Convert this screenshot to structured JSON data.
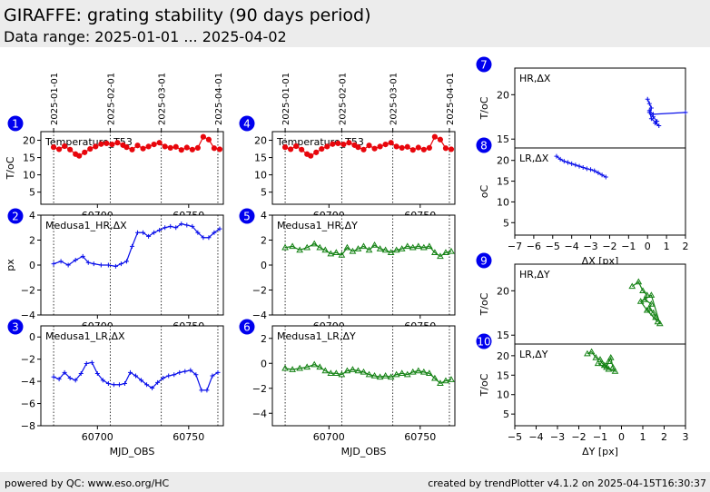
{
  "header": {
    "title": "GIRAFFE: grating stability (90 days period)",
    "subtitle": "Data range: 2025-01-01 ... 2025-04-02"
  },
  "footer": {
    "left": "powered by QC: www.eso.org/HC",
    "right": "created by trendPlotter v4.1.2 on 2025-04-15T16:30:37"
  },
  "colors": {
    "red": "#e8060c",
    "blue": "#0a10ea",
    "green": "#148214",
    "badge": "#0000ee",
    "header_bg": "#ececec"
  },
  "chart_data": [
    {
      "id": 1,
      "type": "line",
      "label": "Temperature_T53",
      "ylabel": "T/oC",
      "ylim": [
        1.5,
        22.5
      ],
      "yticks": [
        5,
        10,
        15,
        20
      ],
      "xlim": [
        60669,
        60769
      ],
      "xticks": [
        60700,
        60750
      ],
      "xlabel": "",
      "color": "red",
      "marker": "circle",
      "x_date_ticks": [
        {
          "label": "2025-01-01",
          "mjd": 60676
        },
        {
          "label": "2025-02-01",
          "mjd": 60707
        },
        {
          "label": "2025-03-01",
          "mjd": 60735
        },
        {
          "label": "2025-04-01",
          "mjd": 60766
        }
      ],
      "series": [
        {
          "x": [
            60676,
            60679,
            60682,
            60685,
            60688,
            60690,
            60693,
            60696,
            60699,
            60702,
            60705,
            60708,
            60711,
            60714,
            60716,
            60719,
            60722,
            60725,
            60728,
            60731,
            60734,
            60737,
            60740,
            60743,
            60746,
            60749,
            60752,
            60755,
            60758,
            60761,
            60764,
            60767
          ],
          "y": [
            18.0,
            17.4,
            18.3,
            17.3,
            16.0,
            15.5,
            16.5,
            17.5,
            18.2,
            18.9,
            19.1,
            18.8,
            19.3,
            18.6,
            18.0,
            17.3,
            18.5,
            17.6,
            18.2,
            18.8,
            19.3,
            18.2,
            17.8,
            18.1,
            17.2,
            17.9,
            17.3,
            17.8,
            21.0,
            20.2,
            17.7,
            17.4
          ]
        }
      ]
    },
    {
      "id": 2,
      "type": "line",
      "label": "Medusa1_HR,ΔX",
      "ylabel": "px",
      "ylim": [
        -4,
        4
      ],
      "yticks": [
        -4,
        -2,
        0,
        2,
        4
      ],
      "xlim": [
        60669,
        60769
      ],
      "xticks": [
        60700,
        60750
      ],
      "xlabel": "",
      "color": "blue",
      "marker": "plus",
      "series": [
        {
          "x": [
            60676,
            60680,
            60684,
            60688,
            60692,
            60695,
            60698,
            60702,
            60706,
            60710,
            60713,
            60716,
            60719,
            60722,
            60725,
            60728,
            60731,
            60734,
            60737,
            60740,
            60743,
            60746,
            60749,
            60752,
            60755,
            60758,
            60761,
            60764,
            60767
          ],
          "y": [
            0.1,
            0.3,
            0.0,
            0.4,
            0.7,
            0.2,
            0.1,
            0.0,
            0.0,
            -0.1,
            0.1,
            0.3,
            1.5,
            2.6,
            2.6,
            2.3,
            2.6,
            2.8,
            3.0,
            3.1,
            3.0,
            3.3,
            3.2,
            3.1,
            2.6,
            2.2,
            2.2,
            2.6,
            2.9
          ]
        }
      ]
    },
    {
      "id": 3,
      "type": "line",
      "label": "Medusa1_LR,ΔX",
      "ylabel": "",
      "ylim": [
        -8,
        1
      ],
      "yticks": [
        -8,
        -6,
        -4,
        -2,
        0
      ],
      "xlim": [
        60669,
        60769
      ],
      "xticks": [
        60700,
        60750
      ],
      "xlabel": "MJD_OBS",
      "color": "blue",
      "marker": "plus",
      "series": [
        {
          "x": [
            60676,
            60679,
            60682,
            60685,
            60688,
            60691,
            60694,
            60697,
            60700,
            60703,
            60706,
            60709,
            60712,
            60715,
            60718,
            60721,
            60724,
            60727,
            60730,
            60733,
            60736,
            60739,
            60742,
            60745,
            60748,
            60751,
            60754,
            60757,
            60760,
            60763,
            60766
          ],
          "y": [
            -3.6,
            -3.8,
            -3.2,
            -3.7,
            -3.9,
            -3.3,
            -2.4,
            -2.3,
            -3.3,
            -3.9,
            -4.2,
            -4.3,
            -4.3,
            -4.2,
            -3.2,
            -3.5,
            -3.9,
            -4.3,
            -4.6,
            -4.1,
            -3.7,
            -3.5,
            -3.4,
            -3.2,
            -3.1,
            -3.0,
            -3.4,
            -4.8,
            -4.8,
            -3.5,
            -3.2
          ]
        }
      ]
    },
    {
      "id": 4,
      "type": "line",
      "label": "Temperature_T53",
      "ylabel": "",
      "ylim": [
        1.5,
        22.5
      ],
      "yticks": [
        5,
        10,
        15,
        20
      ],
      "xlim": [
        60669,
        60769
      ],
      "xticks": [
        60700,
        60750
      ],
      "xlabel": "",
      "color": "red",
      "marker": "circle",
      "x_date_ticks": [
        {
          "label": "2025-01-01",
          "mjd": 60676
        },
        {
          "label": "2025-02-01",
          "mjd": 60707
        },
        {
          "label": "2025-03-01",
          "mjd": 60735
        },
        {
          "label": "2025-04-01",
          "mjd": 60766
        }
      ],
      "series": [
        {
          "x": [
            60676,
            60679,
            60682,
            60685,
            60688,
            60690,
            60693,
            60696,
            60699,
            60702,
            60705,
            60708,
            60711,
            60714,
            60716,
            60719,
            60722,
            60725,
            60728,
            60731,
            60734,
            60737,
            60740,
            60743,
            60746,
            60749,
            60752,
            60755,
            60758,
            60761,
            60764,
            60767
          ],
          "y": [
            18.0,
            17.4,
            18.3,
            17.3,
            16.0,
            15.5,
            16.5,
            17.5,
            18.2,
            18.9,
            19.1,
            18.8,
            19.3,
            18.6,
            18.0,
            17.3,
            18.5,
            17.6,
            18.2,
            18.8,
            19.3,
            18.2,
            17.8,
            18.1,
            17.2,
            17.9,
            17.3,
            17.8,
            21.0,
            20.2,
            17.7,
            17.4
          ]
        }
      ]
    },
    {
      "id": 5,
      "type": "line",
      "label": "Medusa1_HR,ΔY",
      "ylabel": "",
      "ylim": [
        -4,
        4
      ],
      "yticks": [
        -4,
        -2,
        0,
        2,
        4
      ],
      "xlim": [
        60669,
        60769
      ],
      "xticks": [
        60700,
        60750
      ],
      "xlabel": "",
      "color": "green",
      "marker": "triangle",
      "series": [
        {
          "x": [
            60676,
            60680,
            60684,
            60688,
            60692,
            60695,
            60698,
            60701,
            60704,
            60707,
            60710,
            60713,
            60716,
            60719,
            60722,
            60725,
            60728,
            60731,
            60734,
            60737,
            60740,
            60743,
            60746,
            60749,
            60752,
            60755,
            60758,
            60761,
            60764,
            60767
          ],
          "y": [
            1.4,
            1.5,
            1.2,
            1.4,
            1.7,
            1.4,
            1.2,
            0.9,
            1.0,
            0.8,
            1.4,
            1.1,
            1.3,
            1.5,
            1.2,
            1.6,
            1.3,
            1.2,
            1.0,
            1.2,
            1.3,
            1.5,
            1.4,
            1.5,
            1.4,
            1.5,
            1.0,
            0.7,
            1.0,
            1.1
          ]
        }
      ]
    },
    {
      "id": 6,
      "type": "line",
      "label": "Medusa1_LR,ΔY",
      "ylabel": "",
      "ylim": [
        -5,
        3
      ],
      "yticks": [
        -4,
        -2,
        0,
        2
      ],
      "xlim": [
        60669,
        60769
      ],
      "xticks": [
        60700,
        60750
      ],
      "xlabel": "MJD_OBS",
      "color": "green",
      "marker": "triangle",
      "series": [
        {
          "x": [
            60676,
            60680,
            60684,
            60688,
            60692,
            60695,
            60698,
            60701,
            60704,
            60707,
            60710,
            60713,
            60716,
            60719,
            60722,
            60725,
            60728,
            60731,
            60734,
            60737,
            60740,
            60743,
            60746,
            60749,
            60752,
            60755,
            60758,
            60761,
            60764,
            60767
          ],
          "y": [
            -0.4,
            -0.5,
            -0.4,
            -0.3,
            -0.1,
            -0.3,
            -0.6,
            -0.8,
            -0.8,
            -0.9,
            -0.6,
            -0.5,
            -0.6,
            -0.7,
            -0.9,
            -1.0,
            -1.1,
            -1.0,
            -1.1,
            -0.9,
            -0.8,
            -0.9,
            -0.7,
            -0.6,
            -0.7,
            -0.8,
            -1.2,
            -1.6,
            -1.4,
            -1.3
          ]
        }
      ]
    },
    {
      "id": 7,
      "type": "scatter",
      "label": "HR,ΔX",
      "ylabel": "T/oC",
      "ylim": [
        14,
        23
      ],
      "yticks": [
        15,
        20
      ],
      "xlim": [
        -7,
        2
      ],
      "xticks": [],
      "xlabel": "",
      "color": "blue",
      "marker": "plus",
      "series": [
        {
          "x": [
            0.0,
            0.1,
            0.2,
            0.1,
            0.3,
            0.5,
            0.4,
            0.6,
            0.2,
            0.1,
            0.3,
            2.0
          ],
          "y": [
            19.5,
            19.0,
            18.5,
            18.0,
            17.5,
            17.0,
            16.8,
            16.5,
            17.3,
            18.2,
            17.8,
            18.0
          ]
        }
      ]
    },
    {
      "id": 8,
      "type": "scatter",
      "label": "LR,ΔX",
      "ylabel": "oC",
      "ylim": [
        2,
        23
      ],
      "yticks": [
        5,
        10,
        15,
        20
      ],
      "xlim": [
        -7,
        2
      ],
      "xticks": [
        -7,
        -6,
        -5,
        -4,
        -3,
        -2,
        -1,
        0,
        1,
        2
      ],
      "xlabel": "ΔX [px]",
      "color": "blue",
      "marker": "plus",
      "series": [
        {
          "x": [
            -4.8,
            -4.6,
            -4.4,
            -4.2,
            -4.0,
            -3.8,
            -3.6,
            -3.4,
            -3.2,
            -3.0,
            -2.8,
            -2.6,
            -2.4,
            -2.2
          ],
          "y": [
            21.0,
            20.3,
            19.8,
            19.5,
            19.2,
            18.9,
            18.6,
            18.3,
            18.0,
            17.8,
            17.5,
            17.0,
            16.5,
            16.0
          ]
        }
      ]
    },
    {
      "id": 9,
      "type": "scatter",
      "label": "HR,ΔY",
      "ylabel": "T/oC",
      "ylim": [
        14,
        23
      ],
      "yticks": [
        15,
        20
      ],
      "xlim": [
        -5,
        3
      ],
      "xticks": [],
      "xlabel": "",
      "color": "green",
      "marker": "triangle",
      "series": [
        {
          "x": [
            0.5,
            0.8,
            1.0,
            1.2,
            1.1,
            1.4,
            1.3,
            1.5,
            1.6,
            1.7,
            1.2,
            0.9,
            1.4,
            1.8
          ],
          "y": [
            20.5,
            21.0,
            20.0,
            19.5,
            19.0,
            18.5,
            18.0,
            17.5,
            17.0,
            16.5,
            17.8,
            18.8,
            19.5,
            16.3
          ]
        }
      ]
    },
    {
      "id": 10,
      "type": "scatter",
      "label": "LR,ΔY",
      "ylabel": "T/oC",
      "ylim": [
        2,
        23
      ],
      "yticks": [
        5,
        10,
        15,
        20
      ],
      "xlim": [
        -5,
        3
      ],
      "xticks": [
        -5,
        -4,
        -3,
        -2,
        -1,
        0,
        1,
        2,
        3
      ],
      "xlabel": "ΔY [px]",
      "color": "green",
      "marker": "triangle",
      "series": [
        {
          "x": [
            -1.6,
            -1.4,
            -1.2,
            -1.0,
            -0.9,
            -0.8,
            -0.7,
            -0.6,
            -0.5,
            -0.4,
            -0.3,
            -0.6,
            -1.1
          ],
          "y": [
            20.5,
            21.0,
            19.5,
            19.0,
            18.0,
            17.5,
            17.0,
            18.5,
            19.5,
            17.0,
            16.0,
            16.5,
            18.0
          ]
        }
      ]
    }
  ]
}
